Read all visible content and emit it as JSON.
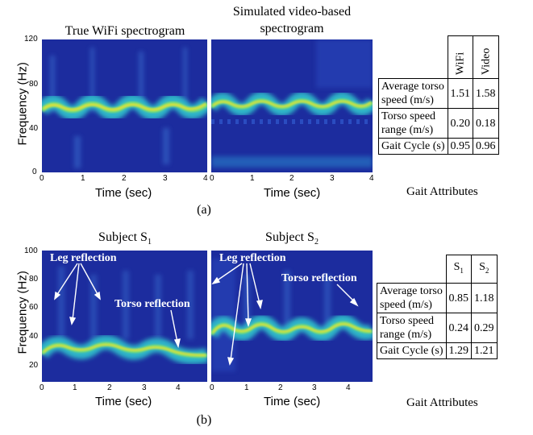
{
  "panel_a": {
    "titles": [
      "True WiFi spectrogram",
      "Simulated video-based",
      "spectrogram"
    ],
    "ylabel": "Frequency (Hz)",
    "xlabel": "Time (sec)",
    "yticks": [
      "120",
      "80",
      "40",
      "0"
    ],
    "xticks": [
      "0",
      "1",
      "2",
      "3",
      "4"
    ],
    "caption": "(a)",
    "table": {
      "headers": [
        "WiFi",
        "Video"
      ],
      "rows": [
        {
          "label1": "Average torso",
          "label2": "speed (m/s)",
          "v1": "1.51",
          "v2": "1.58"
        },
        {
          "label1": "Torso speed",
          "label2": "range (m/s)",
          "v1": "0.20",
          "v2": "0.18"
        },
        {
          "label1": "Gait Cycle (s)",
          "label2": "",
          "v1": "0.95",
          "v2": "0.96"
        }
      ],
      "label": "Gait Attributes"
    }
  },
  "panel_b": {
    "titles": [
      "Subject S",
      "1",
      "Subject S",
      "2"
    ],
    "ylabel": "Frequency (Hz)",
    "xlabel": "Time (sec)",
    "yticks": [
      "100",
      "80",
      "60",
      "40",
      "20"
    ],
    "xticks": [
      "0",
      "1",
      "2",
      "3",
      "4"
    ],
    "annotations": {
      "leg": "Leg reflection",
      "torso": "Torso reflection"
    },
    "caption": "(b)",
    "table": {
      "headers": [
        "S",
        "1",
        "S",
        "2"
      ],
      "rows": [
        {
          "label1": "Average torso",
          "label2": "speed (m/s)",
          "v1": "0.85",
          "v2": "1.18"
        },
        {
          "label1": "Torso speed",
          "label2": "range (m/s)",
          "v1": "0.24",
          "v2": "0.29"
        },
        {
          "label1": "Gait Cycle (s)",
          "label2": "",
          "v1": "1.29",
          "v2": "1.21"
        }
      ],
      "label": "Gait Attributes"
    }
  },
  "colors": {
    "background": "#1a2a9a",
    "low": "#2a3fb0",
    "mid": "#2fb6c8",
    "high": "#f0e030"
  }
}
